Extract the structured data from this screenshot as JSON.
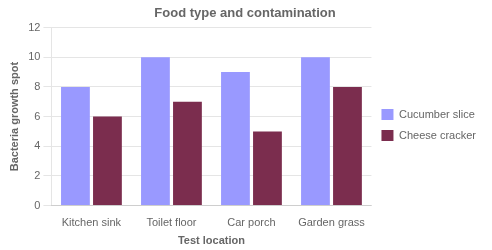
{
  "chart_data": {
    "type": "bar",
    "title": "Food type and contamination",
    "ylabel": "Bacteria growth spot",
    "xlabel": "Test location",
    "categories": [
      "Kitchen sink",
      "Toilet floor",
      "Car porch",
      "Garden grass"
    ],
    "series": [
      {
        "name": "Cucumber slice",
        "color": "#9999ff",
        "values": [
          8,
          10,
          9,
          10
        ]
      },
      {
        "name": "Cheese cracker",
        "color": "#7b2d4e",
        "values": [
          6,
          7,
          5,
          8
        ]
      }
    ],
    "ylim": [
      0,
      12
    ],
    "yticks": [
      0,
      2,
      4,
      6,
      8,
      10,
      12
    ],
    "grid": true,
    "legend": "right"
  }
}
